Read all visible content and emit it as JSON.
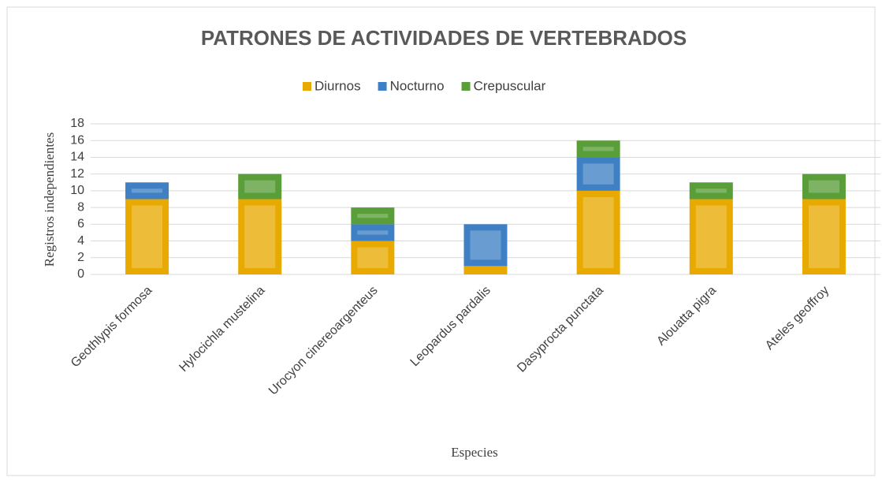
{
  "chart_data": {
    "type": "stacked_bar",
    "title": "PATRONES DE ACTIVIDADES DE VERTEBRADOS",
    "x_label": "Especies",
    "y_label": "Registros independientes",
    "categories": [
      "Geothlypis formosa",
      "Hylocichla mustelina",
      "Urocyon cinereoargenteus",
      "Leopardus pardalis",
      "Dasyprocta punctata",
      "Alouatta pigra",
      "Ateles geoffroy"
    ],
    "series": [
      {
        "name": "Diurnos",
        "color": "#e8aa00",
        "values": [
          9,
          9,
          4,
          1,
          10,
          9,
          9
        ]
      },
      {
        "name": "Nocturno",
        "color": "#3f80c4",
        "values": [
          2,
          0,
          2,
          5,
          4,
          0,
          0
        ]
      },
      {
        "name": "Crepuscular",
        "color": "#5a9e3a",
        "values": [
          0,
          3,
          2,
          0,
          2,
          2,
          3
        ]
      }
    ],
    "ylim": [
      0,
      18
    ],
    "yticks": [
      0,
      2,
      4,
      6,
      8,
      10,
      12,
      14,
      16,
      18
    ],
    "grid": true,
    "legend": "top"
  }
}
